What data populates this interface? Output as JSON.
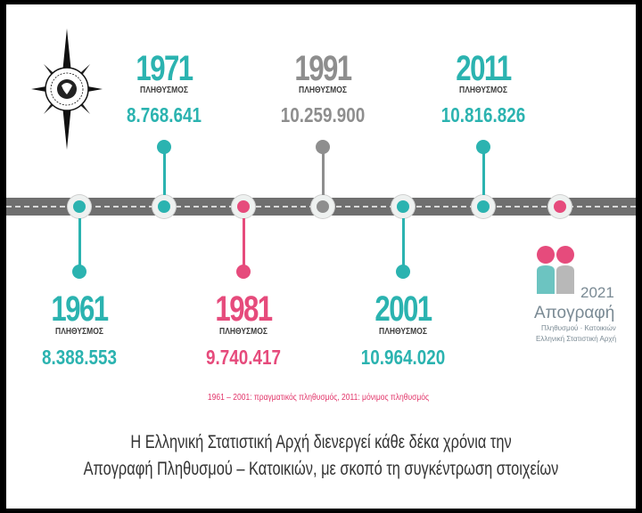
{
  "colors": {
    "teal": "#2bb3b0",
    "pink": "#e64b7c",
    "gray": "#8e8e8e",
    "track": "#6f6f6f",
    "note": "#e2356a"
  },
  "entries": [
    {
      "year": "1961",
      "label": "ΠΛΗΘΥΣΜΟΣ",
      "value": "8.388.553",
      "color": "teal"
    },
    {
      "year": "1971",
      "label": "ΠΛΗΘΥΣΜΟΣ",
      "value": "8.768.641",
      "color": "teal"
    },
    {
      "year": "1981",
      "label": "ΠΛΗΘΥΣΜΟΣ",
      "value": "9.740.417",
      "color": "pink"
    },
    {
      "year": "1991",
      "label": "ΠΛΗΘΥΣΜΟΣ",
      "value": "10.259.900",
      "color": "gray"
    },
    {
      "year": "2001",
      "label": "ΠΛΗΘΥΣΜΟΣ",
      "value": "10.964.020",
      "color": "teal"
    },
    {
      "year": "2011",
      "label": "ΠΛΗΘΥΣΜΟΣ",
      "value": "10.816.826",
      "color": "teal"
    }
  ],
  "note": "1961 – 2001: πραγματικός πληθυσμός, 2011: μόνιμος πληθυσμός",
  "caption_lines": [
    "Η Ελληνική Στατιστική Αρχή διενεργεί κάθε δέκα χρόνια την",
    "Απογραφή Πληθυσμού – Κατοικιών, με σκοπό τη συγκέντρωση στοιχείων"
  ],
  "brand": {
    "year": "2021",
    "title": "Απογραφή",
    "subtitle": "Πληθυσμού · Κατοικιών",
    "org": "Ελληνική Στατιστική Αρχή"
  },
  "logo_icon": "compass-rose-icon"
}
